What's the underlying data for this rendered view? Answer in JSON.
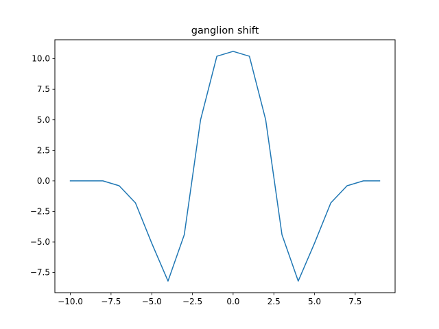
{
  "chart_data": {
    "type": "line",
    "title": "ganglion shift",
    "xlabel": "",
    "ylabel": "",
    "xlim": [
      -10.95,
      9.95
    ],
    "ylim": [
      -9.15,
      11.55
    ],
    "grid": false,
    "x_ticks": [
      -10.0,
      -7.5,
      -5.0,
      -2.5,
      0.0,
      2.5,
      5.0,
      7.5
    ],
    "x_tick_labels": [
      "−10.0",
      "−7.5",
      "−5.0",
      "−2.5",
      "0.0",
      "2.5",
      "5.0",
      "7.5"
    ],
    "y_ticks": [
      -7.5,
      -5.0,
      -2.5,
      0.0,
      2.5,
      5.0,
      7.5,
      10.0
    ],
    "y_tick_labels": [
      "−7.5",
      "−5.0",
      "−2.5",
      "0.0",
      "2.5",
      "5.0",
      "7.5",
      "10.0"
    ],
    "series": [
      {
        "color": "#1f77b4",
        "x": [
          -10,
          -9,
          -8,
          -7,
          -6,
          -5,
          -4,
          -3,
          -2,
          -1,
          0,
          1,
          2,
          3,
          4,
          5,
          6,
          7,
          8,
          9
        ],
        "y": [
          0.0,
          0.0,
          0.0,
          -0.4,
          -1.8,
          -5.1,
          -8.2,
          -4.4,
          5.0,
          10.2,
          10.6,
          10.2,
          5.0,
          -4.4,
          -8.2,
          -5.1,
          -1.8,
          -0.4,
          0.0,
          0.0
        ]
      }
    ]
  }
}
